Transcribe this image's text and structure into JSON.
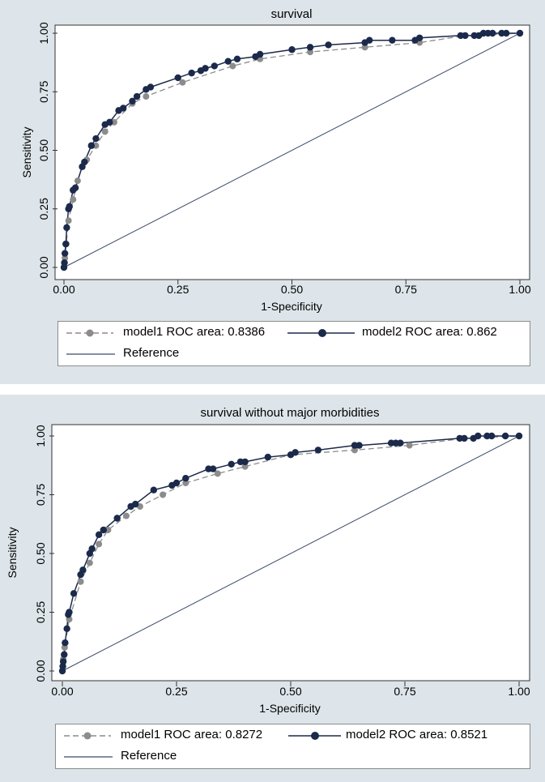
{
  "colors": {
    "panel_bg": "#dde5ea",
    "model1": "#8c8c8c",
    "model2": "#1b2a4a",
    "reference": "#3a4a6a"
  },
  "chart_data": [
    {
      "type": "line",
      "title": "survival",
      "xlabel": "1-Specificity",
      "ylabel": "Sensitivity",
      "xlim": [
        0,
        1
      ],
      "ylim": [
        0,
        1
      ],
      "xticks": [
        "0.00",
        "0.25",
        "0.50",
        "0.75",
        "1.00"
      ],
      "yticks": [
        "0.00",
        "0.25",
        "0.50",
        "0.75",
        "1.00"
      ],
      "legend": {
        "model1": "model1 ROC area: 0.8386",
        "model2": "model2 ROC area: 0.862",
        "reference": "Reference"
      },
      "series": [
        {
          "name": "model1",
          "x": [
            0,
            0.002,
            0.005,
            0.01,
            0.02,
            0.03,
            0.04,
            0.05,
            0.07,
            0.09,
            0.11,
            0.15,
            0.18,
            0.26,
            0.37,
            0.43,
            0.54,
            0.66,
            0.78,
            0.88,
            1.0
          ],
          "y": [
            0,
            0.04,
            0.1,
            0.2,
            0.29,
            0.37,
            0.43,
            0.46,
            0.52,
            0.58,
            0.62,
            0.7,
            0.73,
            0.79,
            0.86,
            0.89,
            0.92,
            0.94,
            0.96,
            0.99,
            1.0
          ]
        },
        {
          "name": "model2",
          "x": [
            0,
            0.001,
            0.002,
            0.004,
            0.006,
            0.01,
            0.012,
            0.02,
            0.025,
            0.04,
            0.045,
            0.06,
            0.07,
            0.09,
            0.1,
            0.12,
            0.13,
            0.15,
            0.16,
            0.18,
            0.19,
            0.25,
            0.28,
            0.3,
            0.31,
            0.33,
            0.36,
            0.38,
            0.42,
            0.43,
            0.5,
            0.54,
            0.58,
            0.66,
            0.67,
            0.72,
            0.77,
            0.78,
            0.87,
            0.88,
            0.9,
            0.91,
            0.92,
            0.93,
            0.94,
            0.96,
            0.97,
            1.0
          ],
          "y": [
            0,
            0.02,
            0.06,
            0.1,
            0.17,
            0.25,
            0.26,
            0.33,
            0.34,
            0.43,
            0.45,
            0.52,
            0.55,
            0.61,
            0.62,
            0.67,
            0.68,
            0.71,
            0.73,
            0.76,
            0.77,
            0.81,
            0.83,
            0.84,
            0.85,
            0.86,
            0.88,
            0.89,
            0.9,
            0.91,
            0.93,
            0.94,
            0.95,
            0.96,
            0.97,
            0.97,
            0.97,
            0.98,
            0.99,
            0.99,
            0.99,
            0.99,
            1.0,
            1.0,
            1.0,
            1.0,
            1.0,
            1.0
          ]
        },
        {
          "name": "Reference",
          "x": [
            0,
            1
          ],
          "y": [
            0,
            1
          ]
        }
      ]
    },
    {
      "type": "line",
      "title": "survival without major morbidities",
      "xlabel": "1-Specificity",
      "ylabel": "Sensitivity",
      "xlim": [
        0,
        1
      ],
      "ylim": [
        0,
        1
      ],
      "xticks": [
        "0.00",
        "0.25",
        "0.50",
        "0.75",
        "1.00"
      ],
      "yticks": [
        "0.00",
        "0.25",
        "0.50",
        "0.75",
        "1.00"
      ],
      "legend": {
        "model1": "model1 ROC area: 0.8272",
        "model2": "model2 ROC area: 0.8521",
        "reference": "Reference"
      },
      "series": [
        {
          "name": "model1",
          "x": [
            0,
            0.002,
            0.005,
            0.015,
            0.04,
            0.06,
            0.08,
            0.1,
            0.14,
            0.17,
            0.22,
            0.27,
            0.34,
            0.4,
            0.5,
            0.64,
            0.76,
            0.88,
            1.0
          ],
          "y": [
            0,
            0.05,
            0.1,
            0.22,
            0.38,
            0.46,
            0.54,
            0.6,
            0.66,
            0.7,
            0.75,
            0.8,
            0.84,
            0.87,
            0.92,
            0.94,
            0.96,
            0.99,
            1.0
          ]
        },
        {
          "name": "model2",
          "x": [
            0,
            0.001,
            0.002,
            0.004,
            0.006,
            0.01,
            0.013,
            0.015,
            0.025,
            0.04,
            0.045,
            0.06,
            0.065,
            0.08,
            0.09,
            0.12,
            0.15,
            0.16,
            0.2,
            0.24,
            0.25,
            0.27,
            0.32,
            0.33,
            0.37,
            0.39,
            0.4,
            0.45,
            0.5,
            0.51,
            0.56,
            0.64,
            0.65,
            0.72,
            0.73,
            0.74,
            0.87,
            0.88,
            0.9,
            0.91,
            0.93,
            0.94,
            0.97,
            1.0
          ],
          "y": [
            0,
            0.02,
            0.04,
            0.07,
            0.12,
            0.18,
            0.24,
            0.25,
            0.33,
            0.41,
            0.43,
            0.5,
            0.52,
            0.58,
            0.6,
            0.65,
            0.7,
            0.71,
            0.77,
            0.79,
            0.8,
            0.82,
            0.86,
            0.86,
            0.88,
            0.89,
            0.89,
            0.91,
            0.92,
            0.93,
            0.94,
            0.96,
            0.96,
            0.97,
            0.97,
            0.97,
            0.99,
            0.99,
            0.99,
            1.0,
            1.0,
            1.0,
            1.0,
            1.0
          ],
          "_": null
        },
        {
          "name": "Reference",
          "x": [
            0,
            1
          ],
          "y": [
            0,
            1
          ]
        }
      ]
    }
  ]
}
